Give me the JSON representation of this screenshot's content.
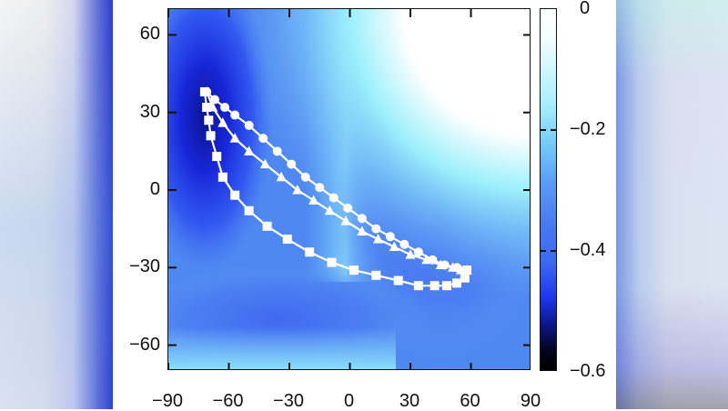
{
  "chart_data": {
    "type": "heatmap",
    "title": "",
    "xlabel": "",
    "ylabel": "",
    "xlim": [
      -90,
      90
    ],
    "ylim": [
      -70,
      70
    ],
    "x_ticks": [
      "−90",
      "−60",
      "−30",
      "0",
      "30",
      "60",
      "90"
    ],
    "y_ticks": [
      "60",
      "30",
      "0",
      "−30",
      "−60"
    ],
    "colorbar": {
      "range": [
        -0.6,
        0
      ],
      "tick_labels": [
        "0",
        "−0.2",
        "−0.4",
        "−0.6"
      ],
      "colors": [
        "#ffffff",
        "#8ee8fb",
        "#4d7df0",
        "#1a2ae8",
        "#000000"
      ]
    },
    "heatmap_description": "Energy landscape; deep minimum (~-0.55) near (-75, 45); broad basin (~-0.3) around (35, 5) and (-45,-45); near 0 at top-right corner (90,70)",
    "series": [
      {
        "name": "circles",
        "marker": "circle",
        "points": [
          [
            -71,
            38
          ],
          [
            -67,
            35
          ],
          [
            -62,
            32
          ],
          [
            -57,
            29
          ],
          [
            -50,
            25
          ],
          [
            -43,
            20
          ],
          [
            -36,
            15
          ],
          [
            -29,
            10
          ],
          [
            -22,
            5
          ],
          [
            -15,
            1
          ],
          [
            -8,
            -3
          ],
          [
            -1,
            -7
          ],
          [
            6,
            -11
          ],
          [
            13,
            -15
          ],
          [
            20,
            -18
          ],
          [
            27,
            -21
          ],
          [
            34,
            -24
          ],
          [
            41,
            -27
          ],
          [
            47,
            -29
          ],
          [
            53,
            -30
          ],
          [
            58,
            -31
          ]
        ]
      },
      {
        "name": "triangles",
        "marker": "triangle",
        "points": [
          [
            -71,
            38
          ],
          [
            -68,
            32
          ],
          [
            -63,
            26
          ],
          [
            -57,
            20
          ],
          [
            -50,
            15
          ],
          [
            -42,
            10
          ],
          [
            -34,
            5
          ],
          [
            -26,
            0
          ],
          [
            -18,
            -4
          ],
          [
            -10,
            -8
          ],
          [
            -2,
            -12
          ],
          [
            6,
            -16
          ],
          [
            14,
            -19
          ],
          [
            22,
            -22
          ],
          [
            30,
            -25
          ],
          [
            38,
            -27
          ],
          [
            45,
            -29
          ],
          [
            51,
            -30
          ],
          [
            55,
            -31
          ],
          [
            58,
            -31
          ]
        ]
      },
      {
        "name": "squares",
        "marker": "square",
        "points": [
          [
            -72,
            38
          ],
          [
            -71,
            32
          ],
          [
            -70,
            27
          ],
          [
            -69,
            21
          ],
          [
            -66,
            13
          ],
          [
            -63,
            5
          ],
          [
            -57,
            -2
          ],
          [
            -50,
            -8
          ],
          [
            -41,
            -14
          ],
          [
            -31,
            -19
          ],
          [
            -20,
            -24
          ],
          [
            -9,
            -28
          ],
          [
            2,
            -31
          ],
          [
            13,
            -33
          ],
          [
            24,
            -35
          ],
          [
            34,
            -37
          ],
          [
            42,
            -37
          ],
          [
            48,
            -37
          ],
          [
            53,
            -36
          ],
          [
            57,
            -34
          ],
          [
            58,
            -31
          ]
        ]
      }
    ]
  },
  "axes": {
    "x_ticks": [
      "−90",
      "−60",
      "−30",
      "0",
      "30",
      "60",
      "90"
    ],
    "y_ticks": [
      "60",
      "30",
      "0",
      "−30",
      "−60"
    ]
  },
  "colorbar": {
    "labels": [
      "0",
      "−0.2",
      "−0.4",
      "−0.6"
    ]
  }
}
